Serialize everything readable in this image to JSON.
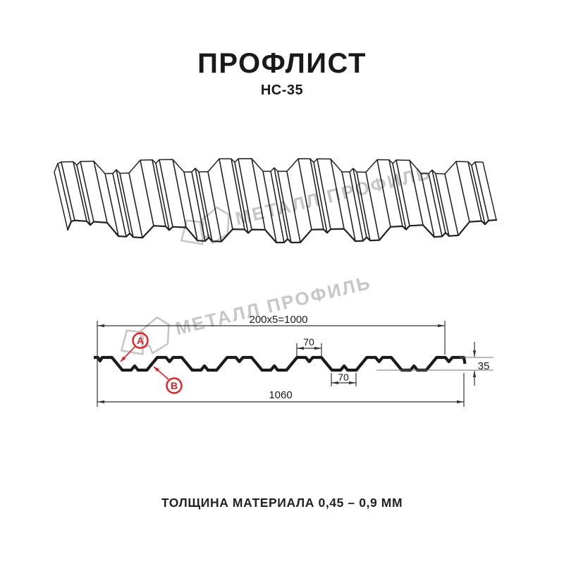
{
  "header": {
    "title": "ПРОФЛИСТ",
    "subtitle": "НС-35"
  },
  "watermark": {
    "text": "МЕТАЛЛ ПРОФИЛЬ",
    "color": "#c6c6c6"
  },
  "diagram": {
    "profile_name": "НС-35",
    "line_color": "#222222",
    "dim_color": "#333333",
    "dimensions": {
      "coverage": "200x5=1000",
      "crest_width_top": "70",
      "valley_width_bottom": "70",
      "profile_height": "35",
      "overall_width": "1060"
    },
    "callouts": {
      "a": "A",
      "b": "B",
      "color": "#e31e24"
    }
  },
  "footer": {
    "text": "ТОЛЩИНА МАТЕРИАЛА 0,45 – 0,9 ММ"
  }
}
